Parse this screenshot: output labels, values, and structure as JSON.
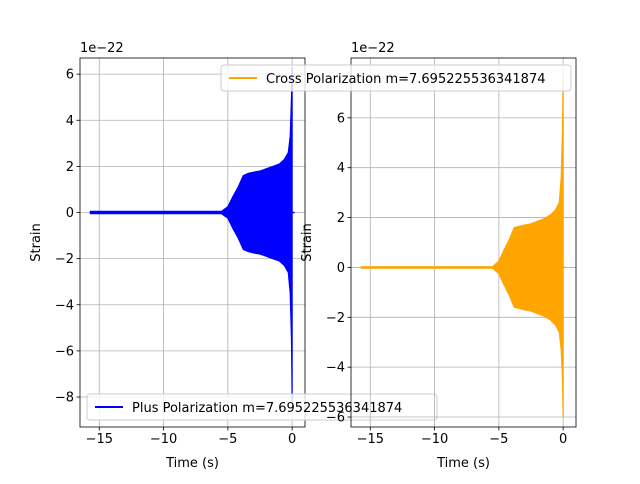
{
  "chart_data": [
    {
      "type": "line",
      "offset_label": "1e−22",
      "xlabel": "Time (s)",
      "ylabel": "Strain",
      "xlim": [
        -16.5,
        1.0
      ],
      "ylim": [
        -9.3,
        6.7
      ],
      "xticks": [
        -15,
        -10,
        -5,
        0
      ],
      "xtick_labels": [
        "−15",
        "−10",
        "−5",
        "0"
      ],
      "yticks": [
        -8,
        -6,
        -4,
        -2,
        0,
        2,
        4,
        6
      ],
      "ytick_labels": [
        "−8",
        "−6",
        "−4",
        "−2",
        "0",
        "2",
        "4",
        "6"
      ],
      "grid": true,
      "legend_position": "lower-left",
      "series": [
        {
          "name": "Plus Polarization m=7.695225536341874",
          "color": "#0000ff",
          "x": [
            -15.7,
            -5.5,
            -5.0,
            -4.6,
            -4.2,
            -3.8,
            -3.4,
            -3.0,
            -2.5,
            -2.0,
            -1.5,
            -1.0,
            -0.6,
            -0.3,
            -0.15,
            -0.05,
            0.0
          ],
          "upper": [
            0.05,
            0.05,
            0.25,
            0.7,
            1.1,
            1.6,
            1.7,
            1.75,
            1.8,
            1.9,
            2.0,
            2.1,
            2.3,
            2.6,
            3.3,
            5.0,
            6.3
          ],
          "lower": [
            -0.05,
            -0.05,
            -0.25,
            -0.7,
            -1.1,
            -1.6,
            -1.7,
            -1.75,
            -1.8,
            -1.9,
            -2.0,
            -2.1,
            -2.3,
            -2.6,
            -3.5,
            -5.5,
            -8.2
          ]
        }
      ]
    },
    {
      "type": "line",
      "offset_label": "1e−22",
      "xlabel": "Time (s)",
      "ylabel": "Strain",
      "xlim": [
        -16.5,
        1.0
      ],
      "ylim": [
        -6.4,
        8.4
      ],
      "xticks": [
        -15,
        -10,
        -5,
        0
      ],
      "xtick_labels": [
        "−15",
        "−10",
        "−5",
        "0"
      ],
      "yticks": [
        -6,
        -4,
        -2,
        0,
        2,
        4,
        6
      ],
      "ytick_labels": [
        "−6",
        "−4",
        "−2",
        "0",
        "2",
        "4",
        "6"
      ],
      "grid": true,
      "legend_position": "upper-right",
      "series": [
        {
          "name": "Cross Polarization m=7.695225536341874",
          "color": "#ffa500",
          "x": [
            -15.7,
            -5.5,
            -5.0,
            -4.6,
            -4.2,
            -3.8,
            -3.4,
            -3.0,
            -2.5,
            -2.0,
            -1.5,
            -1.0,
            -0.6,
            -0.3,
            -0.15,
            -0.05,
            0.0
          ],
          "upper": [
            0.03,
            0.03,
            0.25,
            0.7,
            1.1,
            1.6,
            1.65,
            1.7,
            1.75,
            1.85,
            1.95,
            2.1,
            2.3,
            2.6,
            3.6,
            5.5,
            7.7
          ],
          "lower": [
            -0.03,
            -0.03,
            -0.25,
            -0.7,
            -1.1,
            -1.6,
            -1.65,
            -1.7,
            -1.75,
            -1.85,
            -1.95,
            -2.1,
            -2.3,
            -2.6,
            -3.3,
            -4.5,
            -6.0
          ]
        }
      ]
    }
  ]
}
